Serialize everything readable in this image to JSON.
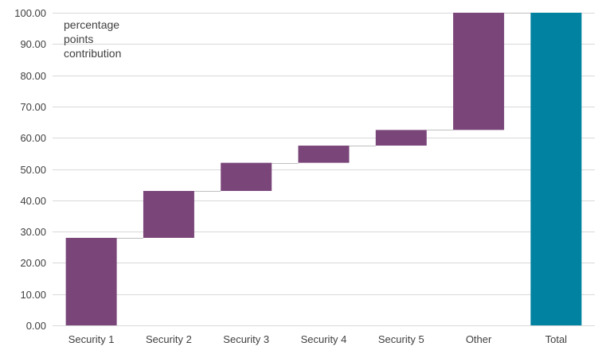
{
  "chart_data": {
    "type": "bar",
    "subtype": "waterfall",
    "categories": [
      "Security 1",
      "Security 2",
      "Security 3",
      "Security 4",
      "Security 5",
      "Other",
      "Total"
    ],
    "series": [
      {
        "increments": [
          28.0,
          15.0,
          9.0,
          5.5,
          5.0,
          37.5
        ],
        "total": 100.0
      }
    ],
    "annotation": "percentage points contribution",
    "ylim": [
      0,
      100
    ],
    "yticks": [
      "0.00",
      "10.00",
      "20.00",
      "30.00",
      "40.00",
      "50.00",
      "60.00",
      "70.00",
      "80.00",
      "90.00",
      "100.00"
    ],
    "grid": true,
    "colors": {
      "increment": "#7a467a",
      "total": "#0082a0",
      "grid": "#d9d9d9",
      "connector": "#bfbfbf",
      "text": "#404040"
    }
  }
}
